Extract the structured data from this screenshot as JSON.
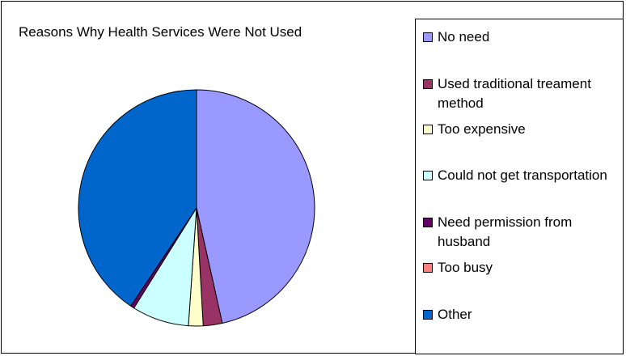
{
  "chart_data": {
    "type": "pie",
    "title": "Reasons Why Health Services Were Not Used",
    "legend_position": "right",
    "slices": [
      {
        "name": "No need",
        "value": 46.5,
        "color": "#9999FF"
      },
      {
        "name": "Used traditional treament method",
        "value": 2.6,
        "color": "#993366"
      },
      {
        "name": "Too expensive",
        "value": 2.0,
        "color": "#FFFFCC"
      },
      {
        "name": "Could not get transportation",
        "value": 7.8,
        "color": "#CCFFFF"
      },
      {
        "name": "Need permission from husband",
        "value": 0.5,
        "color": "#660066"
      },
      {
        "name": "Too busy",
        "value": 0.0,
        "color": "#FF8080"
      },
      {
        "name": "Other",
        "value": 40.6,
        "color": "#0066CC"
      }
    ]
  }
}
